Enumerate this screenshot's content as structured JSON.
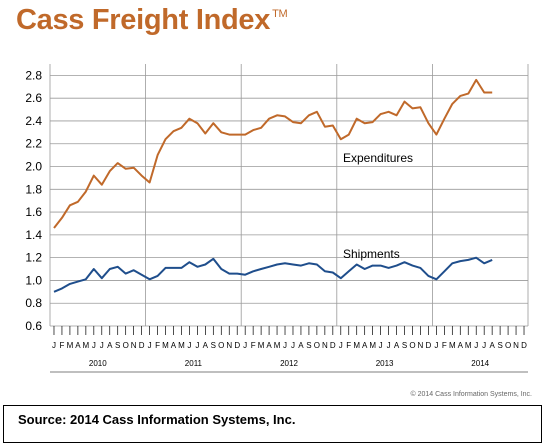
{
  "header": {
    "title": "Cass Freight Index",
    "trademark": "TM"
  },
  "colors": {
    "expenditures": "#c0692a",
    "shipments": "#1f4e8c",
    "grid": "#9a9a9a"
  },
  "chart_data": {
    "type": "line",
    "y_ticks": [
      "0.6",
      "0.8",
      "1.0",
      "1.2",
      "1.4",
      "1.6",
      "1.8",
      "2.0",
      "2.2",
      "2.4",
      "2.6",
      "2.8"
    ],
    "ylim": [
      0.6,
      2.9
    ],
    "month_labels": [
      "J",
      "F",
      "M",
      "A",
      "M",
      "J",
      "J",
      "A",
      "S",
      "O",
      "N",
      "D"
    ],
    "years": [
      "2010",
      "2011",
      "2012",
      "2013",
      "2014"
    ],
    "grid": true,
    "series": [
      {
        "name": "Expenditures",
        "color": "#c0692a",
        "values": [
          1.46,
          1.55,
          1.66,
          1.69,
          1.78,
          1.92,
          1.84,
          1.96,
          2.03,
          1.98,
          1.99,
          1.92,
          1.86,
          2.1,
          2.24,
          2.31,
          2.34,
          2.42,
          2.38,
          2.29,
          2.38,
          2.3,
          2.28,
          2.28,
          2.28,
          2.32,
          2.34,
          2.42,
          2.45,
          2.44,
          2.39,
          2.38,
          2.45,
          2.48,
          2.35,
          2.36,
          2.24,
          2.28,
          2.42,
          2.38,
          2.39,
          2.46,
          2.48,
          2.45,
          2.57,
          2.51,
          2.52,
          2.38,
          2.28,
          2.42,
          2.55,
          2.62,
          2.64,
          2.76,
          2.65,
          2.65
        ]
      },
      {
        "name": "Shipments",
        "color": "#1f4e8c",
        "values": [
          0.9,
          0.93,
          0.97,
          0.99,
          1.01,
          1.1,
          1.02,
          1.1,
          1.12,
          1.06,
          1.09,
          1.05,
          1.01,
          1.04,
          1.11,
          1.11,
          1.11,
          1.16,
          1.12,
          1.14,
          1.19,
          1.1,
          1.06,
          1.06,
          1.05,
          1.08,
          1.1,
          1.12,
          1.14,
          1.15,
          1.14,
          1.13,
          1.15,
          1.14,
          1.08,
          1.07,
          1.02,
          1.08,
          1.14,
          1.1,
          1.13,
          1.13,
          1.11,
          1.13,
          1.16,
          1.13,
          1.11,
          1.04,
          1.01,
          1.08,
          1.15,
          1.17,
          1.18,
          1.2,
          1.15,
          1.18
        ]
      }
    ]
  },
  "footer": {
    "copyright": "© 2014 Cass Information Systems, Inc.",
    "source": "Source: 2014 Cass Information Systems, Inc."
  }
}
